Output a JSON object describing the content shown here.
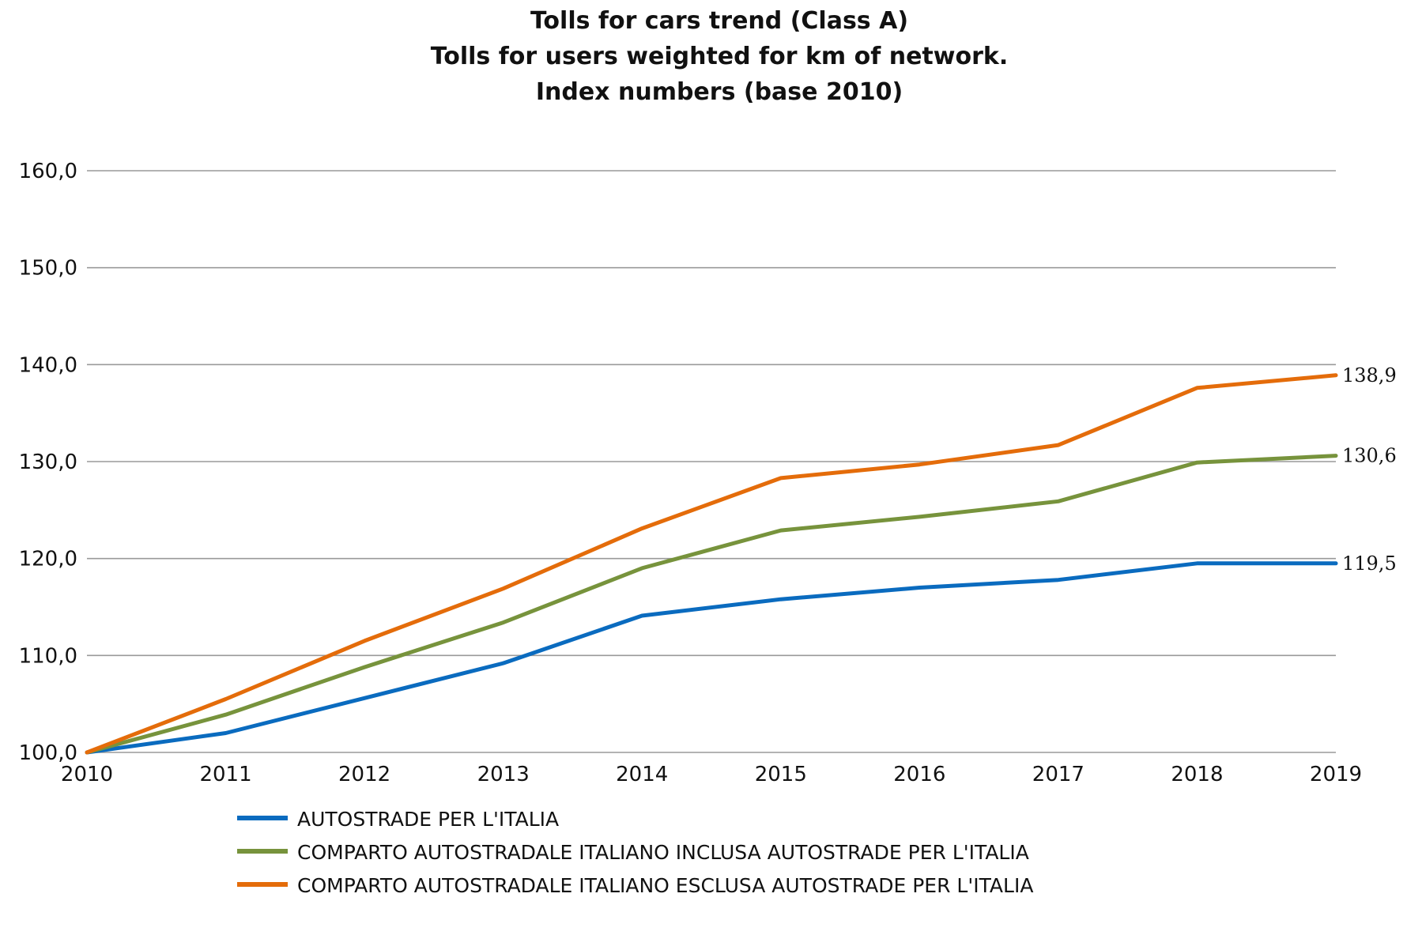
{
  "chart_data": {
    "type": "line",
    "title_lines": [
      "Tolls for cars trend (Class A)",
      "Tolls for users weighted for km of network.",
      "Index numbers (base 2010)"
    ],
    "xlabel": "",
    "ylabel": "",
    "categories": [
      "2010",
      "2011",
      "2012",
      "2013",
      "2014",
      "2015",
      "2016",
      "2017",
      "2018",
      "2019"
    ],
    "y_ticks": [
      "100,0",
      "110,0",
      "120,0",
      "130,0",
      "140,0",
      "150,0",
      "160,0"
    ],
    "ylim": [
      100,
      160
    ],
    "grid": true,
    "legend_position": "bottom",
    "series": [
      {
        "name": "AUTOSTRADE PER L'ITALIA",
        "color": "#0a6bbf",
        "values": [
          100.0,
          102.0,
          105.6,
          109.2,
          114.1,
          115.8,
          117.0,
          117.8,
          119.5,
          119.5
        ],
        "end_label": "119,5"
      },
      {
        "name": "COMPARTO AUTOSTRADALE ITALIANO INCLUSA AUTOSTRADE PER L'ITALIA",
        "color": "#77933c",
        "values": [
          100.0,
          103.9,
          108.8,
          113.4,
          119.0,
          122.9,
          124.3,
          125.9,
          129.9,
          130.6
        ],
        "end_label": "130,6"
      },
      {
        "name": "COMPARTO AUTOSTRADALE ITALIANO ESCLUSA AUTOSTRADE PER L'ITALIA",
        "color": "#e46c0a",
        "values": [
          100.0,
          105.5,
          111.5,
          116.9,
          123.1,
          128.3,
          129.7,
          131.7,
          137.6,
          138.9
        ],
        "end_label": "138,9"
      }
    ]
  }
}
